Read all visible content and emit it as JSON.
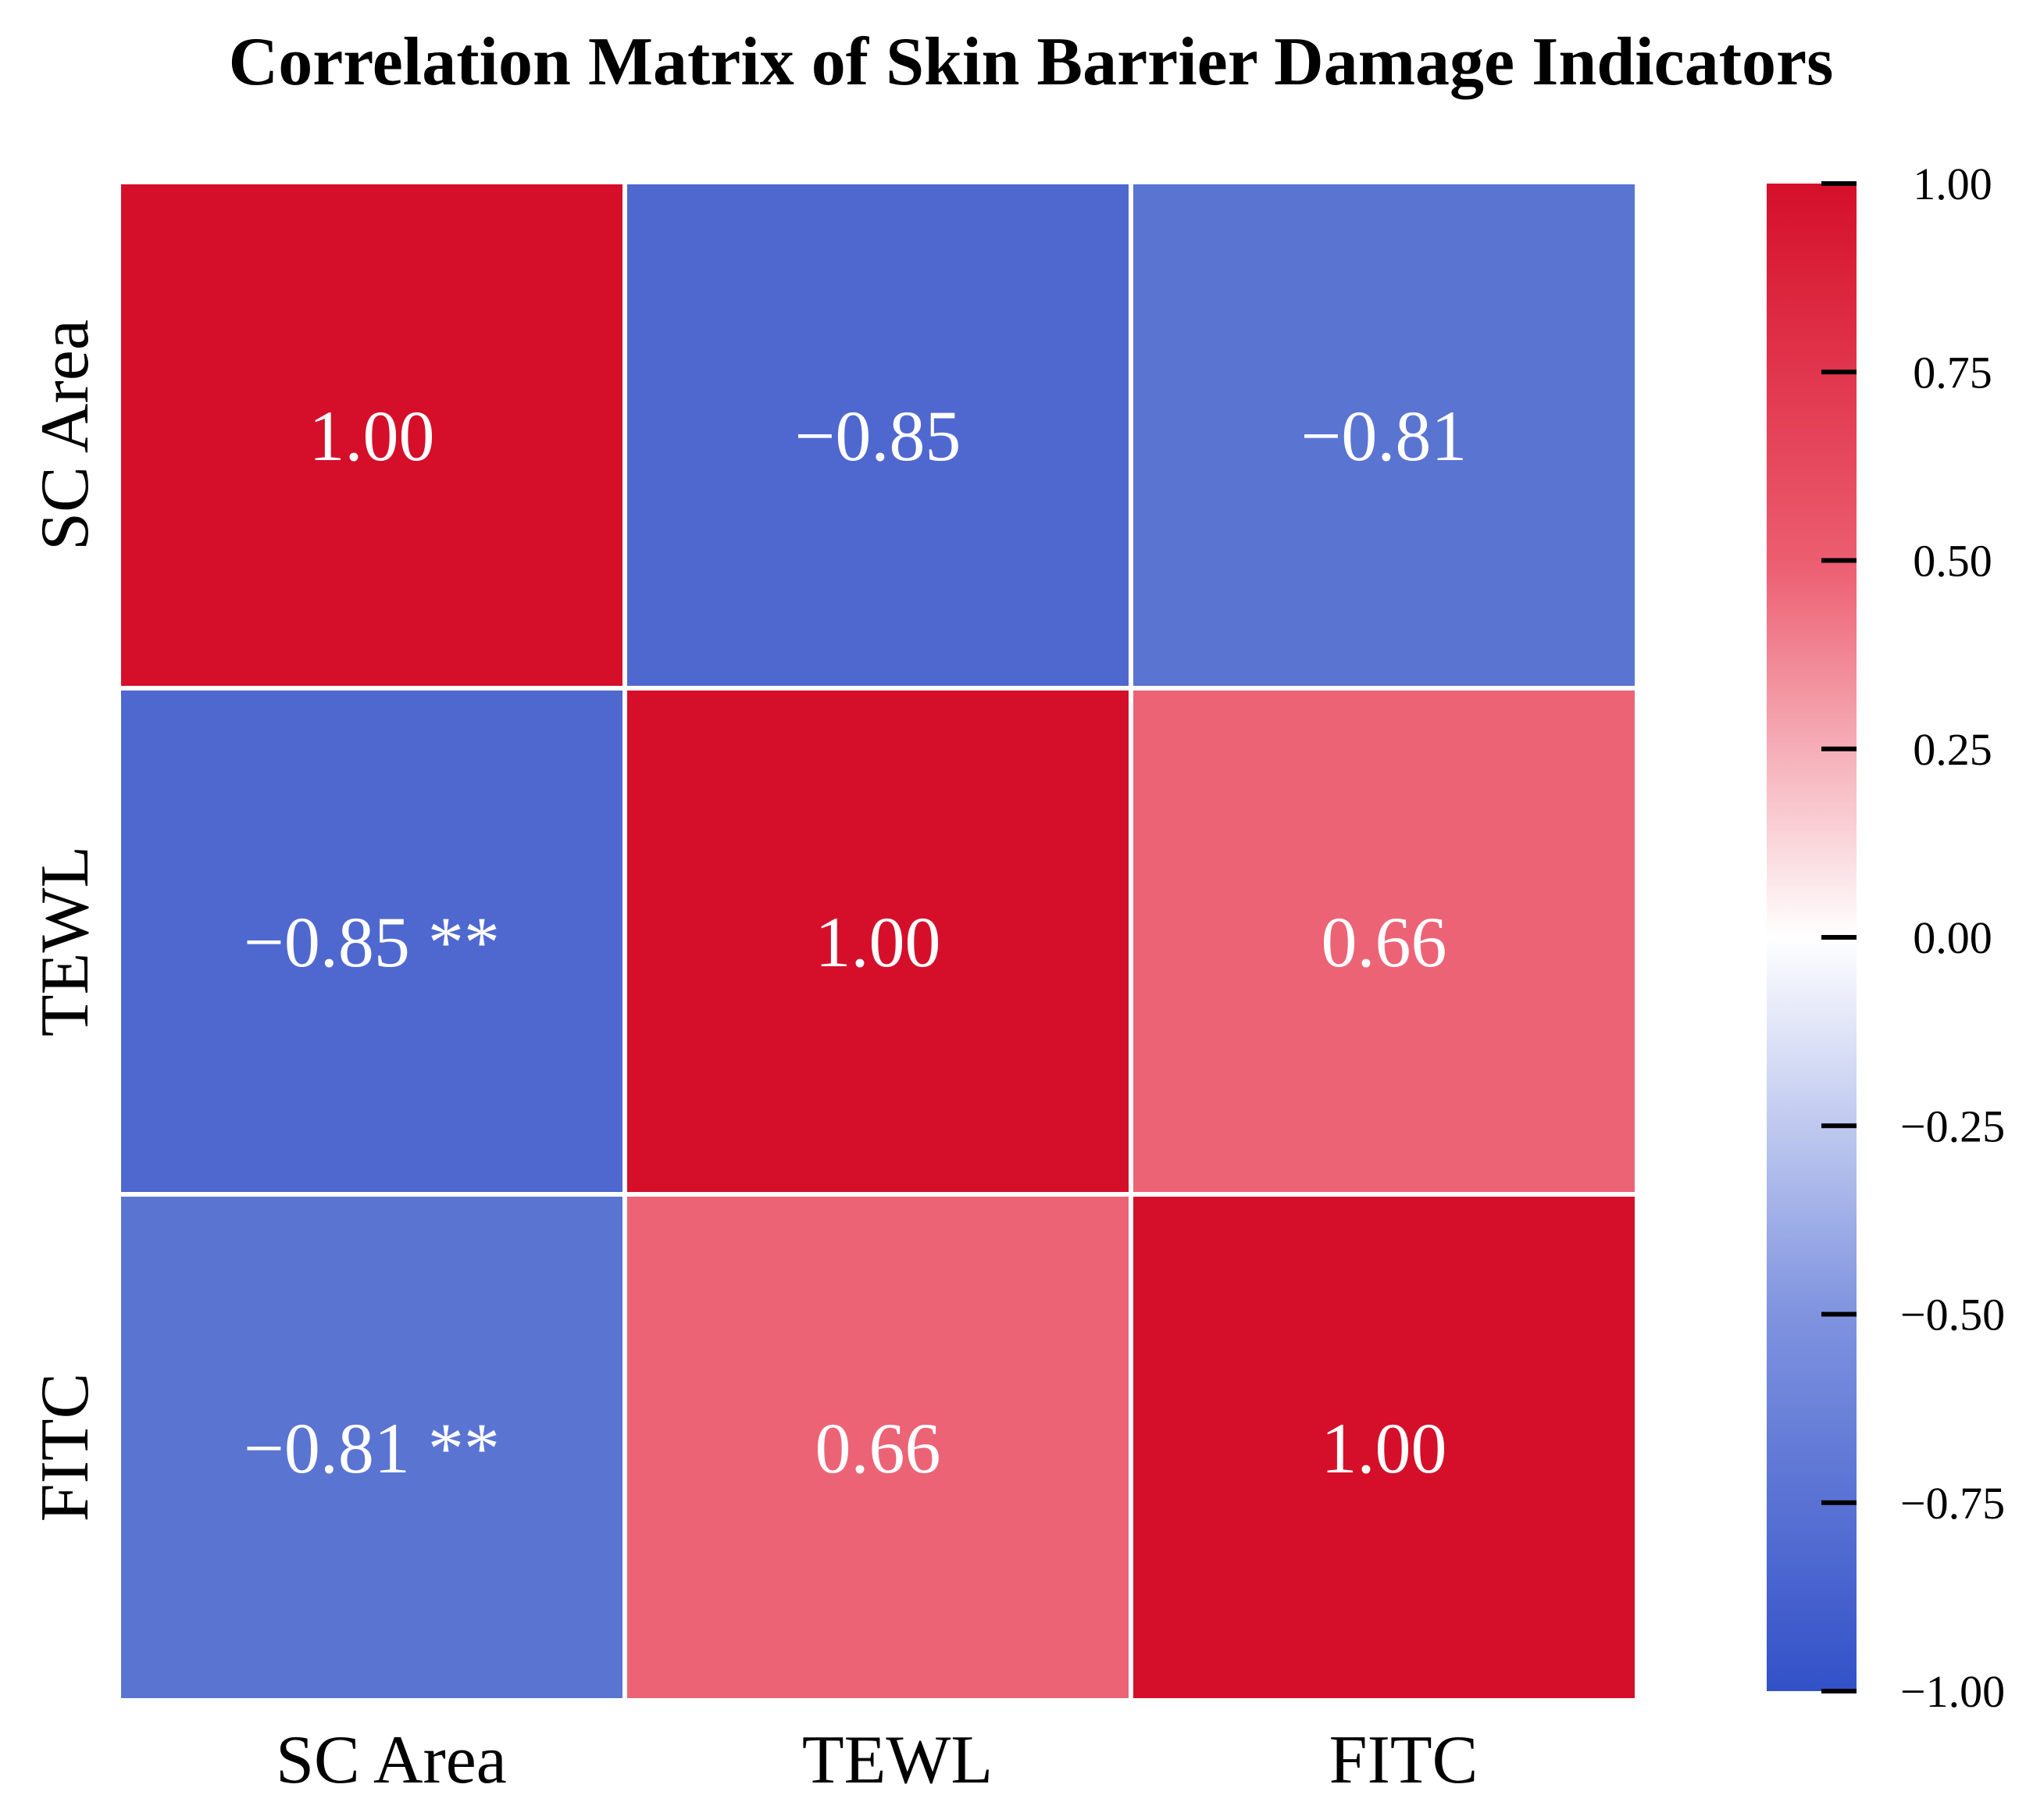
{
  "chart_data": {
    "type": "heatmap",
    "title": "Correlation Matrix of Skin Barrier Damage Indicators",
    "row_labels": [
      "SC Area",
      "TEWL",
      "FITC"
    ],
    "column_labels": [
      "SC Area",
      "TEWL",
      "FITC"
    ],
    "values": [
      [
        1.0,
        -0.85,
        -0.81
      ],
      [
        -0.85,
        1.0,
        0.66
      ],
      [
        -0.81,
        0.66,
        1.0
      ]
    ],
    "annotations": [
      [
        "1.00",
        "−0.85",
        "−0.81"
      ],
      [
        "−0.85 **",
        "1.00",
        "0.66"
      ],
      [
        "−0.81 **",
        "0.66",
        "1.00"
      ]
    ],
    "colormap": "coolwarm (blue–white–red)",
    "vmin": -1.0,
    "vmax": 1.0,
    "colorbar": {
      "ticks": [
        1.0,
        0.75,
        0.5,
        0.25,
        0.0,
        -0.25,
        -0.5,
        -0.75,
        -1.0
      ],
      "tick_labels": [
        "1.00",
        "0.75",
        "0.50",
        "0.25",
        "0.00",
        "−0.25",
        "−0.50",
        "−0.75",
        "−1.00"
      ]
    },
    "colors": {
      "positive_max": "#d50f2a",
      "positive_mid": "#ed6376",
      "neutral": "#ffffff",
      "negative_mid": "#5a74d2",
      "negative_max": "#3351c8"
    }
  }
}
